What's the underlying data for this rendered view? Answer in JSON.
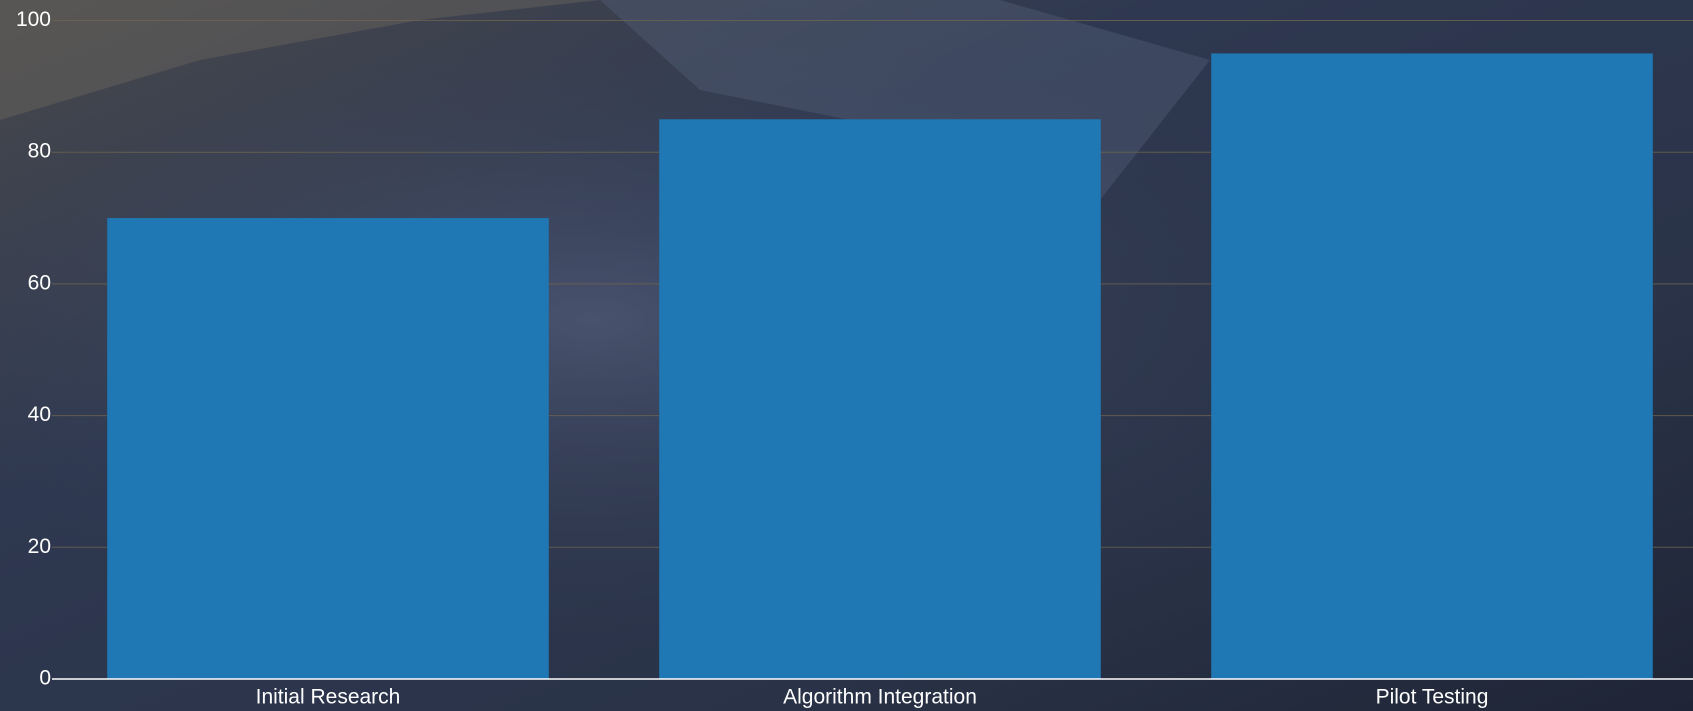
{
  "chart_data": {
    "type": "bar",
    "categories": [
      "Initial Research",
      "Algorithm Integration",
      "Pilot Testing"
    ],
    "values": [
      70,
      85,
      95
    ],
    "color": "#1f77b4",
    "ylim": [
      0,
      100
    ],
    "yticks": [
      0,
      20,
      40,
      60,
      80,
      100
    ],
    "grid": true
  }
}
